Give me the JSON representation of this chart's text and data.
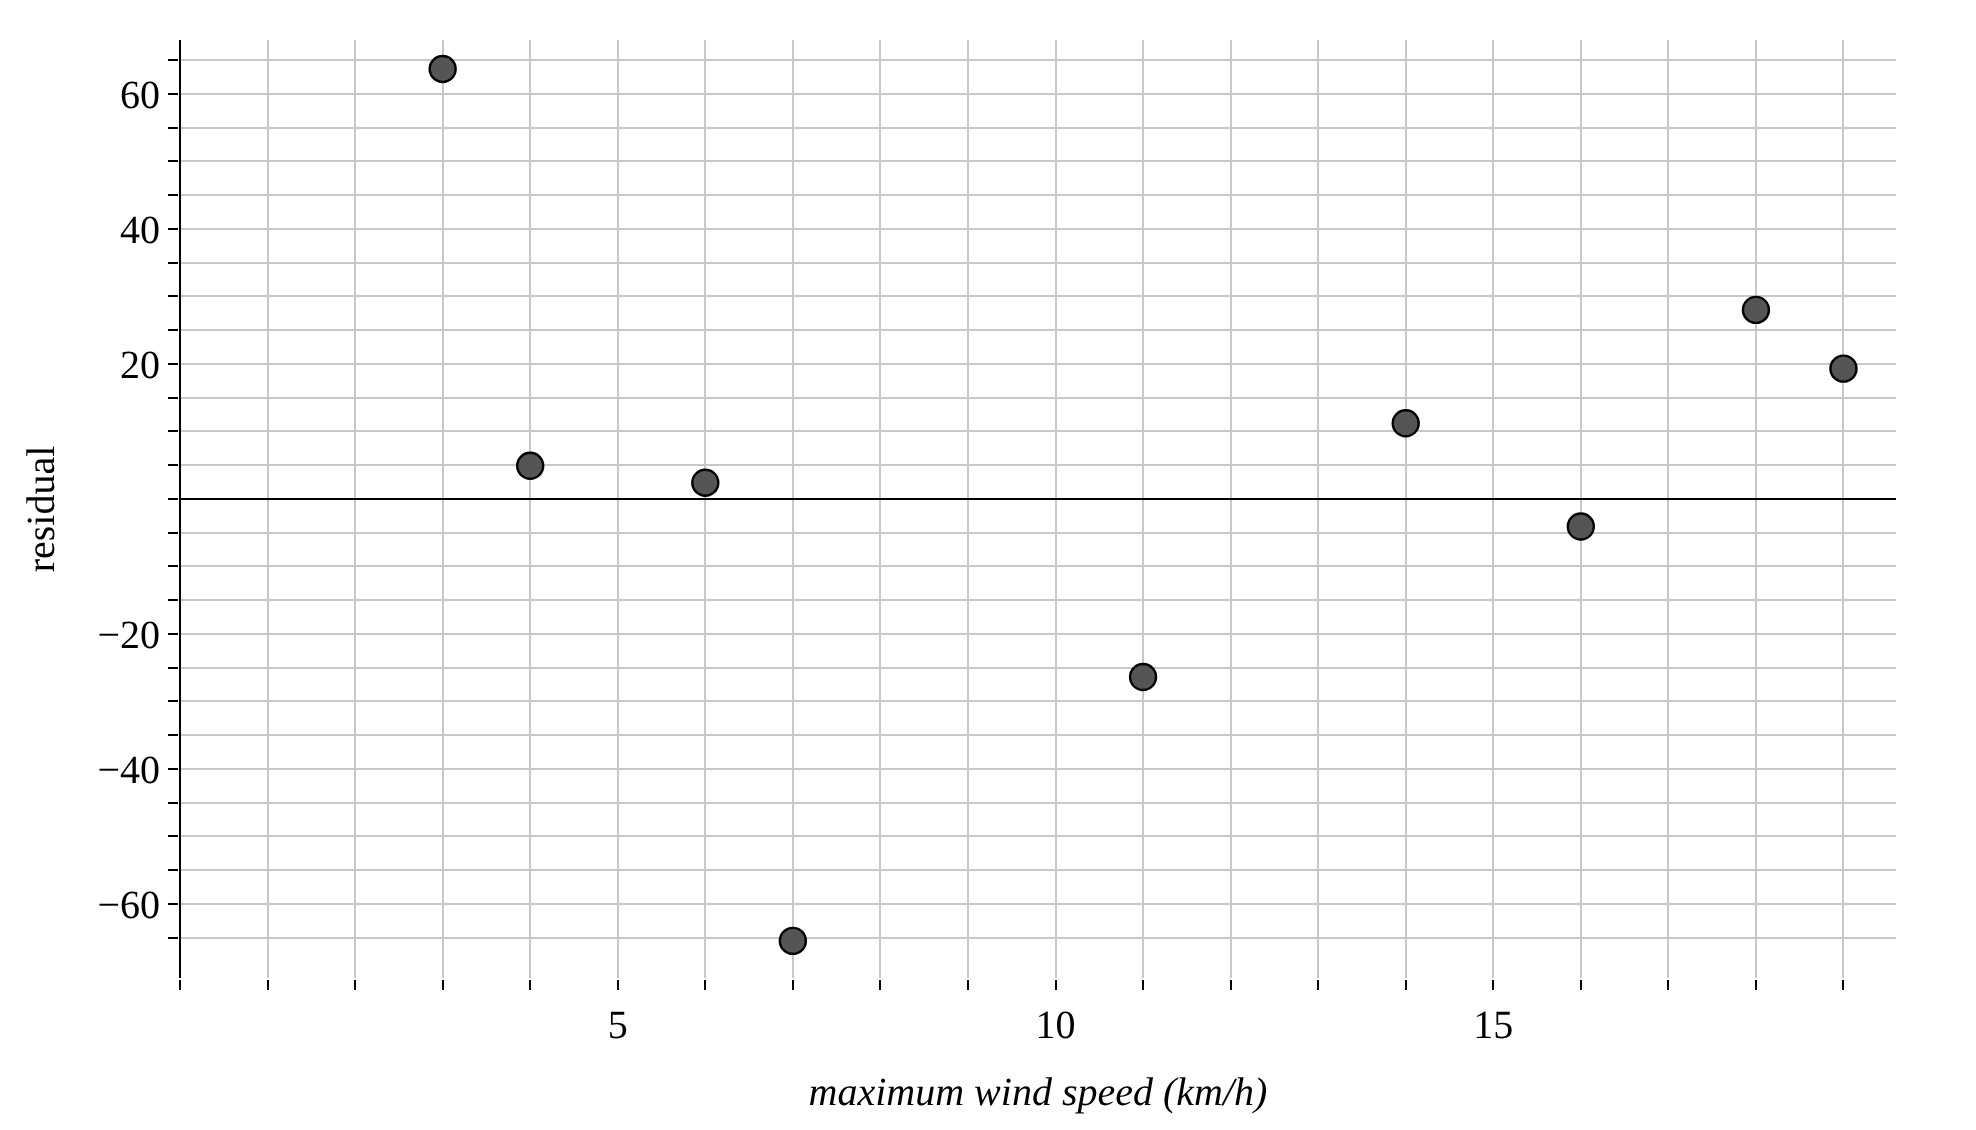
{
  "chart_data": {
    "type": "scatter",
    "xlabel": "maximum wind speed (km/h)",
    "ylabel": "residual",
    "x": [
      3,
      4,
      6,
      7,
      11,
      14,
      16,
      18,
      19
    ],
    "series": [
      {
        "color": "#555555",
        "values": [
          63.7,
          4.9,
          2.4,
          -65.5,
          -26.4,
          11.2,
          -4.1,
          28,
          19.3
        ]
      }
    ],
    "xlim": [
      0,
      19.6
    ],
    "ylim": [
      -71,
      68
    ],
    "xticks": [
      {
        "value": 0,
        "label": null
      },
      {
        "value": 1,
        "label": null
      },
      {
        "value": 2,
        "label": null
      },
      {
        "value": 3,
        "label": null
      },
      {
        "value": 4,
        "label": null
      },
      5,
      {
        "value": 6,
        "label": null
      },
      {
        "value": 7,
        "label": null
      },
      {
        "value": 8,
        "label": null
      },
      {
        "value": 9,
        "label": null
      },
      10,
      {
        "value": 11,
        "label": null
      },
      {
        "value": 12,
        "label": null
      },
      {
        "value": 13,
        "label": null
      },
      {
        "value": 14,
        "label": null
      },
      15,
      {
        "value": 16,
        "label": null
      },
      {
        "value": 17,
        "label": null
      },
      {
        "value": 18,
        "label": null
      },
      {
        "value": 19,
        "label": null
      }
    ],
    "yticks": [
      {
        "value": -65,
        "label": null
      },
      {
        "value": -60,
        "label": "−60"
      },
      {
        "value": -55,
        "label": null
      },
      {
        "value": -50,
        "label": null
      },
      {
        "value": -45,
        "label": null
      },
      {
        "value": -40,
        "label": "−40"
      },
      {
        "value": -35,
        "label": null
      },
      {
        "value": -30,
        "label": null
      },
      {
        "value": -25,
        "label": null
      },
      {
        "value": -20,
        "label": "−20"
      },
      {
        "value": -15,
        "label": null
      },
      {
        "value": -10,
        "label": null
      },
      {
        "value": -5,
        "label": null
      },
      {
        "value": 0,
        "label": null
      },
      {
        "value": 5,
        "label": null
      },
      {
        "value": 10,
        "label": null
      },
      {
        "value": 15,
        "label": null
      },
      20,
      {
        "value": 25,
        "label": null
      },
      {
        "value": 30,
        "label": null
      },
      {
        "value": 35,
        "label": null
      },
      40,
      {
        "value": 45,
        "label": null
      },
      {
        "value": 50,
        "label": null
      },
      {
        "value": 55,
        "label": null
      },
      60,
      {
        "value": 65,
        "label": null
      }
    ],
    "grid": true,
    "marker": "circle",
    "legend": false
  }
}
